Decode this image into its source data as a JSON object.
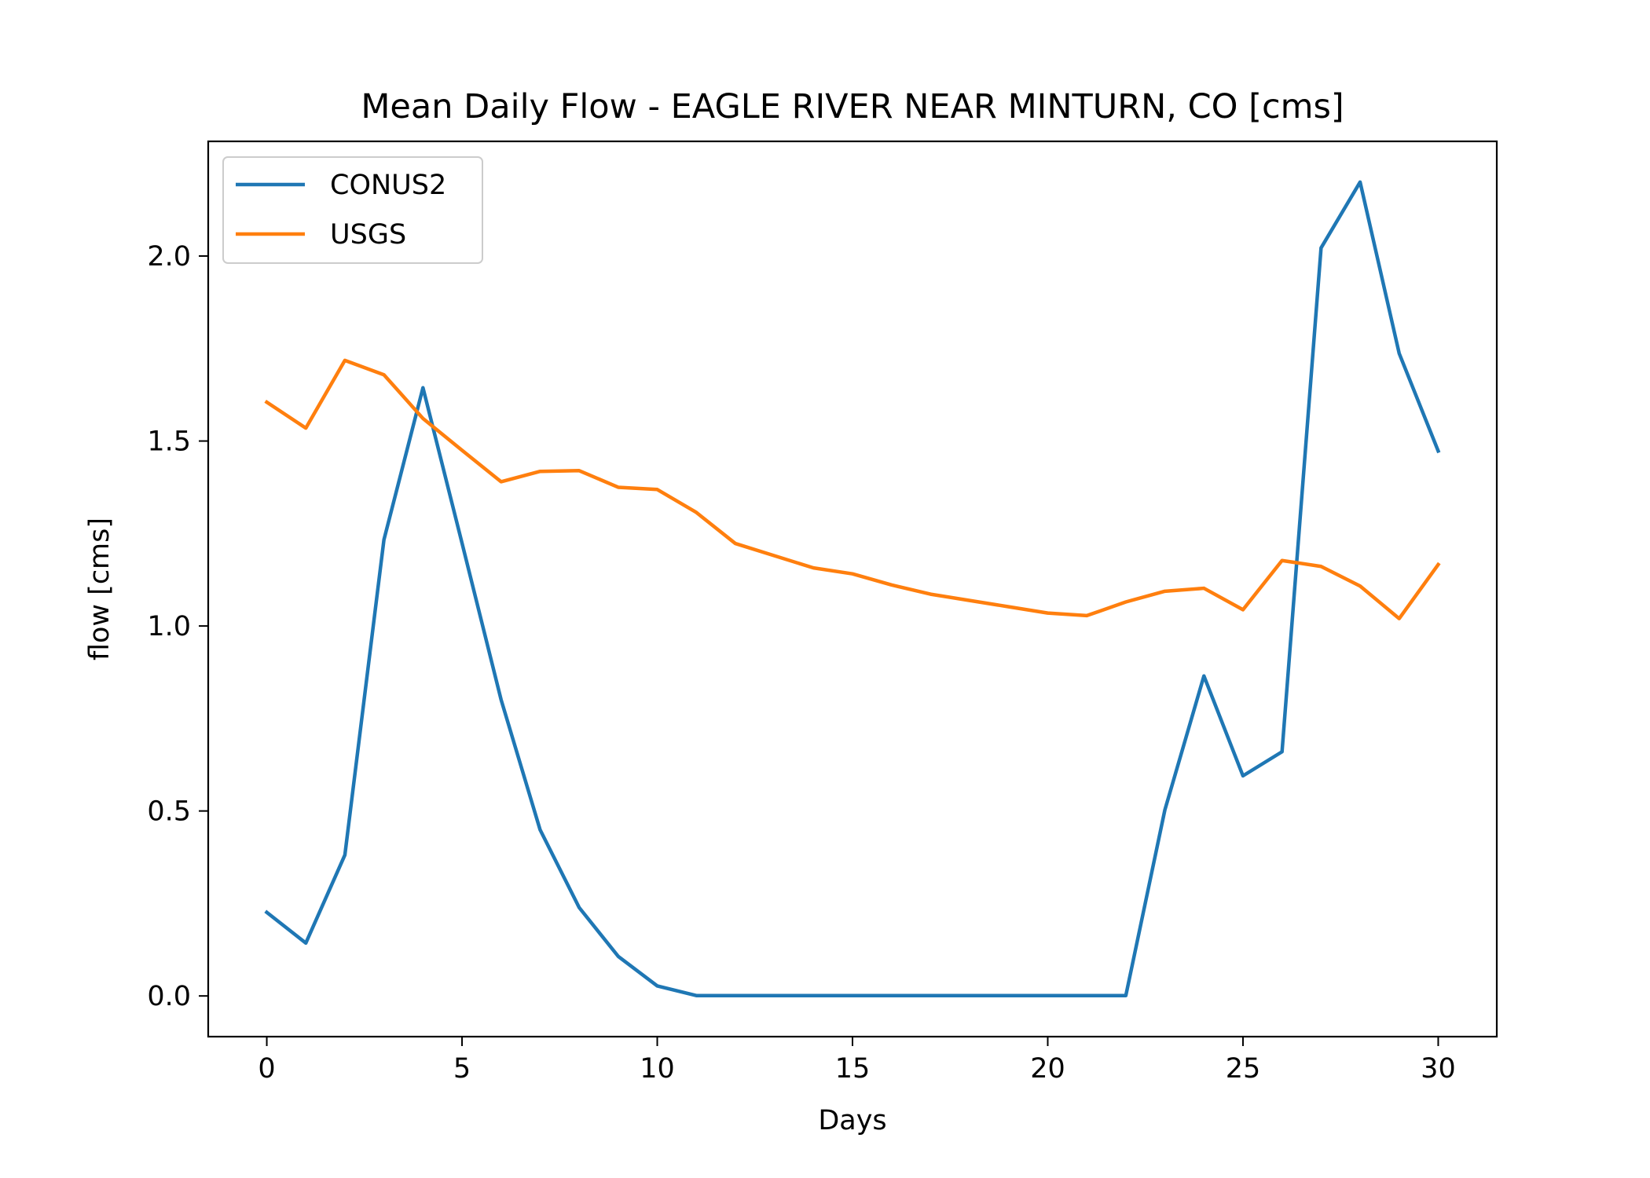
{
  "chart_data": {
    "type": "line",
    "title": "Mean Daily Flow - EAGLE RIVER NEAR MINTURN, CO [cms]",
    "xlabel": "Days",
    "ylabel": "flow [cms]",
    "xlim": [
      -1.5,
      31.5
    ],
    "ylim": [
      -0.11,
      2.31
    ],
    "xticks": [
      0,
      5,
      10,
      15,
      20,
      25,
      30
    ],
    "xtick_labels": [
      "0",
      "5",
      "10",
      "15",
      "20",
      "25",
      "30"
    ],
    "yticks": [
      0.0,
      0.5,
      1.0,
      1.5,
      2.0
    ],
    "ytick_labels": [
      "0.0",
      "0.5",
      "1.0",
      "1.5",
      "2.0"
    ],
    "grid": false,
    "legend_position": "upper left",
    "x": [
      0,
      1,
      2,
      3,
      4,
      5,
      6,
      7,
      8,
      9,
      10,
      11,
      12,
      13,
      14,
      15,
      16,
      17,
      18,
      19,
      20,
      21,
      22,
      23,
      24,
      25,
      26,
      27,
      28,
      29,
      30
    ],
    "series": [
      {
        "name": "CONUS2",
        "color": "#1f77b4",
        "values": [
          0.226,
          0.143,
          0.381,
          1.233,
          1.644,
          1.224,
          0.801,
          0.449,
          0.239,
          0.107,
          0.027,
          0.001,
          0.001,
          0.001,
          0.001,
          0.001,
          0.001,
          0.001,
          0.001,
          0.001,
          0.001,
          0.001,
          0.001,
          0.503,
          0.865,
          0.595,
          0.66,
          2.022,
          2.2,
          1.737,
          1.473
        ]
      },
      {
        "name": "USGS",
        "color": "#ff7f0e",
        "values": [
          1.605,
          1.535,
          1.718,
          1.679,
          1.561,
          1.475,
          1.39,
          1.418,
          1.42,
          1.375,
          1.369,
          1.307,
          1.223,
          1.19,
          1.157,
          1.141,
          1.111,
          1.086,
          1.069,
          1.052,
          1.035,
          1.028,
          1.065,
          1.094,
          1.102,
          1.044,
          1.177,
          1.161,
          1.108,
          1.02,
          1.166
        ]
      }
    ]
  }
}
